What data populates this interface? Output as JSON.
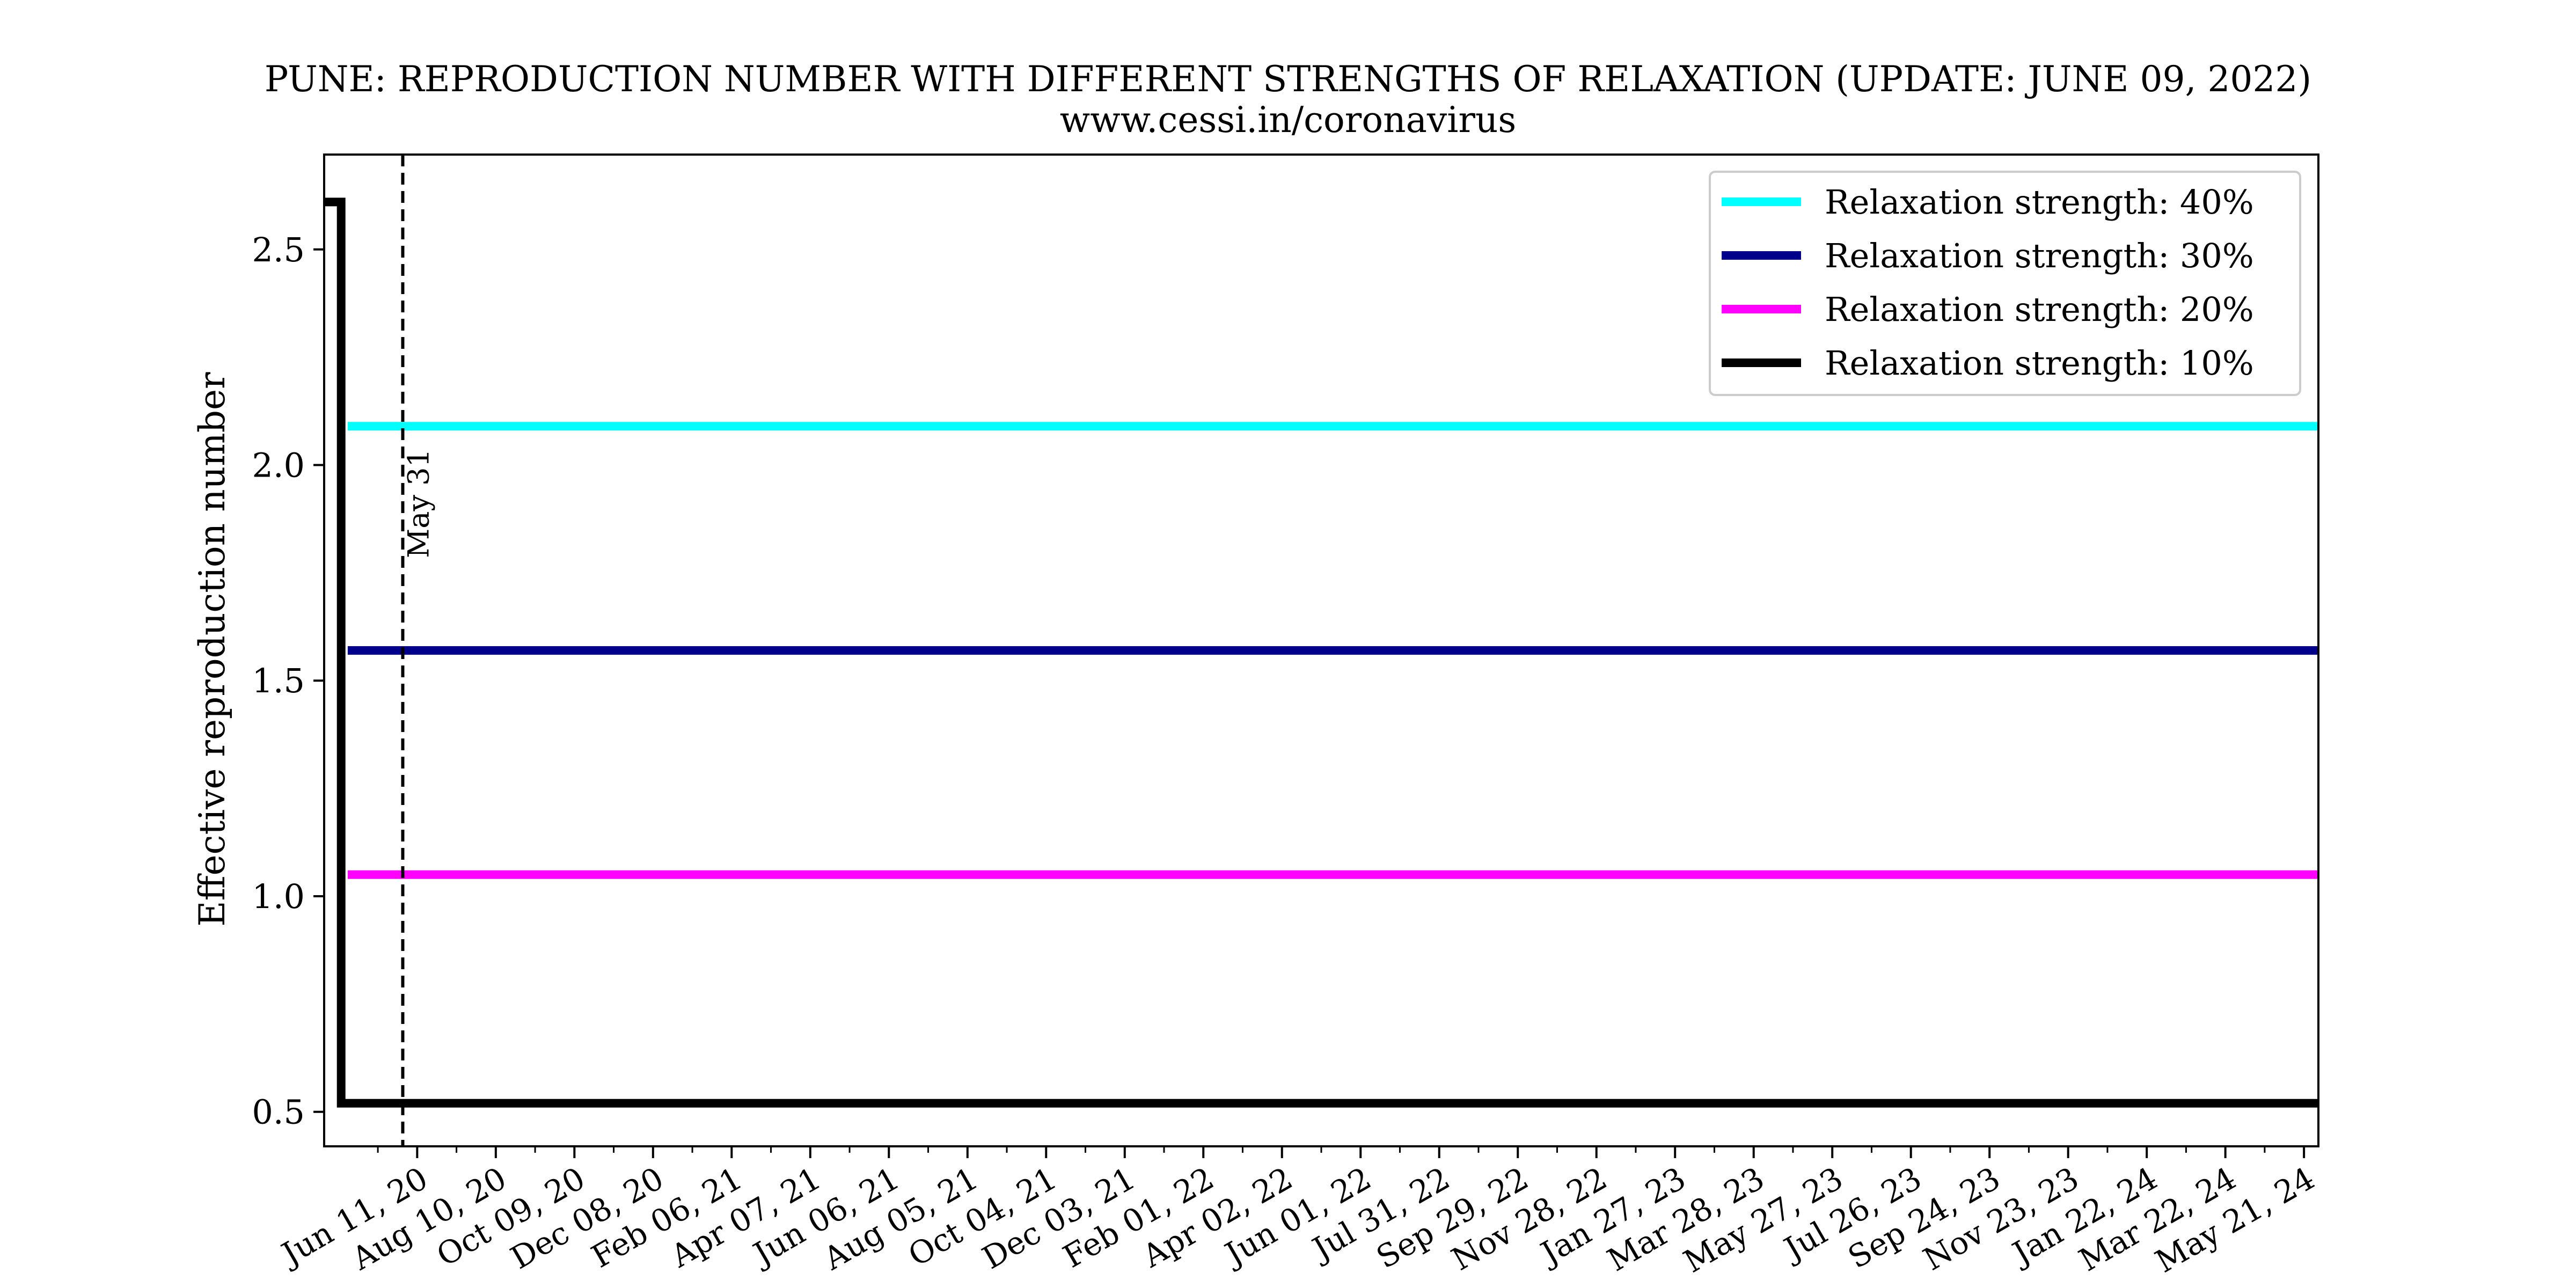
{
  "chart_data": {
    "type": "line",
    "title": "PUNE: REPRODUCTION NUMBER WITH DIFFERENT STRENGTHS OF RELAXATION (UPDATE: JUNE 09, 2022)",
    "subtitle": "www.cessi.in/coronavirus",
    "xlabel": "",
    "ylabel": "Effective reproduction number",
    "x_tick_labels": [
      "Jun 11, 20",
      "Aug 10, 20",
      "Oct 09, 20",
      "Dec 08, 20",
      "Feb 06, 21",
      "Apr 07, 21",
      "Jun 06, 21",
      "Aug 05, 21",
      "Oct 04, 21",
      "Dec 03, 21",
      "Feb 01, 22",
      "Apr 02, 22",
      "Jun 01, 22",
      "Jul 31, 22",
      "Sep 29, 22",
      "Nov 28, 22",
      "Jan 27, 23",
      "Mar 28, 23",
      "May 27, 23",
      "Jul 26, 23",
      "Sep 24, 23",
      "Nov 23, 23",
      "Jan 22, 24",
      "Mar 22, 24",
      "May 21, 24"
    ],
    "x_tick_step_days": 60,
    "x_range": [
      "Apr 01, 20",
      "Jun 01, 24"
    ],
    "ylim": [
      0.42,
      2.72
    ],
    "y_ticks": [
      0.5,
      1.0,
      1.5,
      2.0,
      2.5
    ],
    "y_tick_labels": [
      "0.5",
      "1.0",
      "1.5",
      "2.0",
      "2.5"
    ],
    "grid": false,
    "legend_position": "top-right",
    "annotation": {
      "label": "May 31",
      "date": "May 31, 20",
      "style": "dashed vertical line"
    },
    "series": [
      {
        "name": "Relaxation strength: 40%",
        "color": "#00ffff",
        "points": [
          [
            "Apr 19, 20",
            2.09
          ],
          [
            "Jun 01, 24",
            2.09
          ]
        ]
      },
      {
        "name": "Relaxation strength: 30%",
        "color": "#00008b",
        "points": [
          [
            "Apr 19, 20",
            1.57
          ],
          [
            "Jun 01, 24",
            1.57
          ]
        ]
      },
      {
        "name": "Relaxation strength: 20%",
        "color": "#ff00ff",
        "points": [
          [
            "Apr 19, 20",
            1.05
          ],
          [
            "Jun 01, 24",
            1.05
          ]
        ]
      },
      {
        "name": "Relaxation strength: 10%",
        "color": "#000000",
        "points": [
          [
            "Apr 01, 20",
            2.61
          ],
          [
            "Apr 14, 20",
            2.61
          ],
          [
            "Apr 14, 20",
            0.52
          ],
          [
            "Jun 01, 24",
            0.52
          ]
        ]
      }
    ]
  }
}
